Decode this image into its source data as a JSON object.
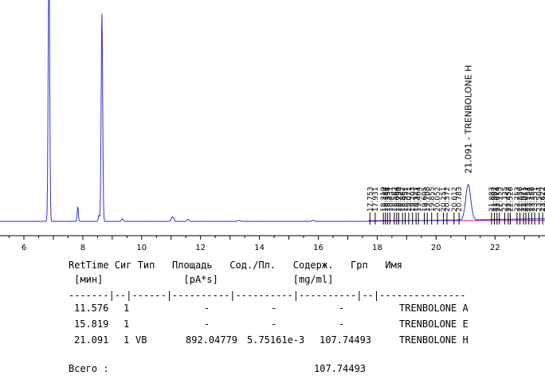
{
  "chart_data": {
    "type": "line",
    "title": "",
    "xlabel": "",
    "ylabel": "",
    "xlim": [
      4.5,
      23.8
    ],
    "x_ticks": [
      6,
      8,
      10,
      12,
      14,
      16,
      18,
      20,
      22
    ],
    "colors": {
      "signal": "#3333cc",
      "baseline": "#cc00cc",
      "axis": "#000000"
    },
    "peaks": [
      {
        "rt": 6.85,
        "height": 1.3,
        "width": 0.025
      },
      {
        "rt": 7.83,
        "height": 0.07,
        "width": 0.02
      },
      {
        "rt": 8.55,
        "height": 0.03,
        "width": 0.02
      },
      {
        "rt": 8.65,
        "height": 1.0,
        "width": 0.025
      },
      {
        "rt": 9.35,
        "height": 0.012,
        "width": 0.03
      },
      {
        "rt": 11.05,
        "height": 0.022,
        "width": 0.04
      },
      {
        "rt": 11.576,
        "height": 0.01,
        "width": 0.03
      },
      {
        "rt": 13.3,
        "height": 0.004,
        "width": 0.05
      },
      {
        "rt": 15.819,
        "height": 0.005,
        "width": 0.04
      },
      {
        "rt": 21.091,
        "height": 0.17,
        "width": 0.085
      }
    ],
    "named_peak_label": "21.091 - TRENBOLONE H",
    "minor_peak_labels": [
      {
        "rt": 17.753,
        "label": "17.753"
      },
      {
        "rt": 17.931,
        "label": "17.931"
      },
      {
        "rt": 18.21,
        "label": "18.210"
      },
      {
        "rt": 18.28,
        "label": "18.284"
      },
      {
        "rt": 18.35,
        "label": "18.354"
      },
      {
        "rt": 18.43,
        "label": "18.431"
      },
      {
        "rt": 18.58,
        "label": "18.582"
      },
      {
        "rt": 18.66,
        "label": "18.664"
      },
      {
        "rt": 18.73,
        "label": "18.738"
      },
      {
        "rt": 18.86,
        "label": "18.862"
      },
      {
        "rt": 18.95,
        "label": "18.951"
      },
      {
        "rt": 19.07,
        "label": "19.071"
      },
      {
        "rt": 19.2,
        "label": "19.203"
      },
      {
        "rt": 19.32,
        "label": "19.321"
      },
      {
        "rt": 19.4,
        "label": "19.404"
      },
      {
        "rt": 19.6,
        "label": "19.605"
      },
      {
        "rt": 19.7,
        "label": "19.708"
      },
      {
        "rt": 19.85,
        "label": "19.855"
      },
      {
        "rt": 20.05,
        "label": "20.052"
      },
      {
        "rt": 20.25,
        "label": "20.251"
      },
      {
        "rt": 20.37,
        "label": "20.372"
      },
      {
        "rt": 20.61,
        "label": "20.612"
      },
      {
        "rt": 20.78,
        "label": "20.783"
      },
      {
        "rt": 21.883,
        "label": "21.883"
      },
      {
        "rt": 21.98,
        "label": "21.982"
      },
      {
        "rt": 22.07,
        "label": "22.074"
      },
      {
        "rt": 22.15,
        "label": "22.153"
      },
      {
        "rt": 22.33,
        "label": "22.335"
      },
      {
        "rt": 22.45,
        "label": "22.452"
      },
      {
        "rt": 22.52,
        "label": "22.520"
      },
      {
        "rt": 22.75,
        "label": "22.753"
      },
      {
        "rt": 22.85,
        "label": "22.856"
      },
      {
        "rt": 22.97,
        "label": "22.971"
      },
      {
        "rt": 23.05,
        "label": "23.052"
      },
      {
        "rt": 23.15,
        "label": "23.154"
      },
      {
        "rt": 23.25,
        "label": "23.256"
      },
      {
        "rt": 23.35,
        "label": "23.351"
      },
      {
        "rt": 23.5,
        "label": "23.504"
      },
      {
        "rt": 23.62,
        "label": "23.622"
      },
      {
        "rt": 23.72,
        "label": "23.713"
      }
    ]
  },
  "report": {
    "header1": "RetTime Сиг Тип   Площадь   Сод./Пл.   Содерж.   Грп   Имя",
    "header2": " [мин]              [pA*s]             [mg/ml]",
    "separator": "-------|--|------|----------|----------|----------|--|---------------",
    "rows": [
      {
        "rt": "11.576",
        "sig": "1",
        "type": "",
        "area": "-",
        "ratio": "-",
        "amount": "-",
        "grp": "",
        "name": "TRENBOLONE A"
      },
      {
        "rt": "15.819",
        "sig": "1",
        "type": "",
        "area": "-",
        "ratio": "-",
        "amount": "-",
        "grp": "",
        "name": "TRENBOLONE E"
      },
      {
        "rt": "21.091",
        "sig": "1",
        "type": "VB",
        "area": "892.04779",
        "ratio": "5.75161e-3",
        "amount": "107.74493",
        "grp": "",
        "name": "TRENBOLONE H"
      }
    ],
    "total_label": "Всего :",
    "total_value": "107.74493"
  }
}
